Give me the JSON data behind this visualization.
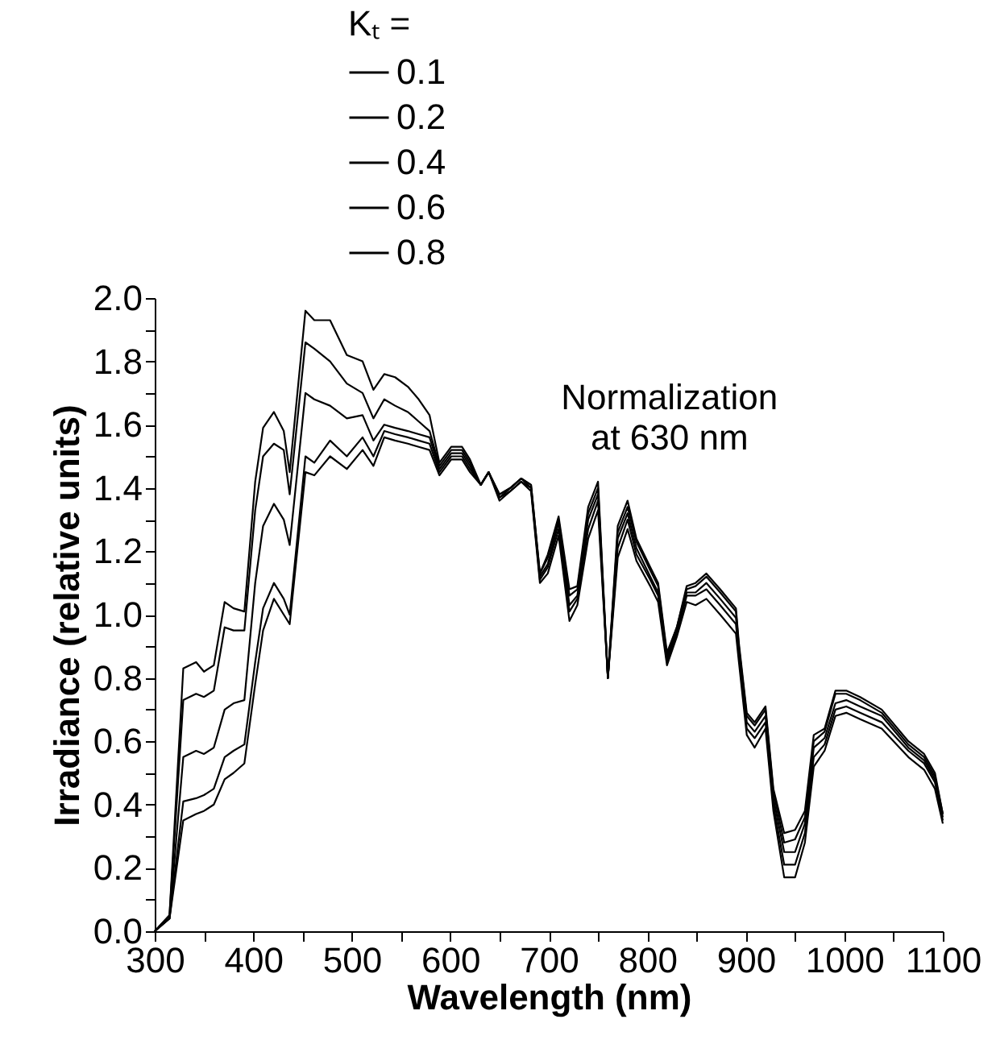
{
  "chart_data": {
    "type": "line",
    "xlabel": "Wavelength (nm)",
    "ylabel": "Irradiance (relative units)",
    "legend_title": "Kₜ =",
    "legend": "top",
    "x": [
      300,
      315,
      329,
      342,
      350,
      360,
      371,
      380,
      391,
      402,
      410,
      421,
      431,
      437,
      453,
      462,
      478,
      495,
      511,
      522,
      533,
      544,
      557,
      568,
      579,
      589,
      601,
      612,
      620,
      631,
      639,
      650,
      661,
      672,
      682,
      691,
      699,
      710,
      721,
      729,
      740,
      750,
      760,
      770,
      780,
      789,
      803,
      811,
      820,
      830,
      840,
      849,
      860,
      874,
      890,
      893,
      901,
      909,
      920,
      928,
      939,
      950,
      960,
      969,
      980,
      991,
      1002,
      1016,
      1038,
      1065,
      1081,
      1092,
      1100
    ],
    "series": [
      {
        "name": "0.1",
        "color": "#000000",
        "values": [
          0,
          0.05,
          0.83,
          0.85,
          0.82,
          0.84,
          1.04,
          1.02,
          1.01,
          1.42,
          1.59,
          1.64,
          1.58,
          1.45,
          1.96,
          1.93,
          1.93,
          1.82,
          1.8,
          1.71,
          1.76,
          1.75,
          1.72,
          1.68,
          1.63,
          1.48,
          1.53,
          1.53,
          1.49,
          1.41,
          1.45,
          1.36,
          1.39,
          1.42,
          1.39,
          1.1,
          1.13,
          1.25,
          0.98,
          1.03,
          1.24,
          1.33,
          0.8,
          1.18,
          1.27,
          1.17,
          1.09,
          1.04,
          0.84,
          0.93,
          1.04,
          1.03,
          1.05,
          1.0,
          0.94,
          0.85,
          0.62,
          0.58,
          0.64,
          0.38,
          0.17,
          0.17,
          0.28,
          0.52,
          0.57,
          0.68,
          0.69,
          0.67,
          0.64,
          0.55,
          0.51,
          0.45,
          0.34
        ]
      },
      {
        "name": "0.2",
        "color": "#000000",
        "values": [
          0,
          0.05,
          0.73,
          0.75,
          0.74,
          0.76,
          0.96,
          0.95,
          0.95,
          1.33,
          1.5,
          1.54,
          1.52,
          1.38,
          1.86,
          1.84,
          1.8,
          1.73,
          1.7,
          1.62,
          1.68,
          1.66,
          1.64,
          1.61,
          1.58,
          1.47,
          1.52,
          1.52,
          1.48,
          1.41,
          1.45,
          1.37,
          1.39,
          1.42,
          1.4,
          1.11,
          1.15,
          1.27,
          1.01,
          1.05,
          1.27,
          1.36,
          0.8,
          1.21,
          1.3,
          1.19,
          1.11,
          1.06,
          0.85,
          0.94,
          1.06,
          1.06,
          1.08,
          1.03,
          0.97,
          0.87,
          0.64,
          0.61,
          0.66,
          0.4,
          0.21,
          0.21,
          0.31,
          0.55,
          0.59,
          0.7,
          0.71,
          0.69,
          0.66,
          0.57,
          0.53,
          0.47,
          0.35
        ]
      },
      {
        "name": "0.4",
        "color": "#000000",
        "values": [
          0,
          0.04,
          0.55,
          0.57,
          0.56,
          0.58,
          0.7,
          0.72,
          0.73,
          1.1,
          1.28,
          1.35,
          1.3,
          1.22,
          1.7,
          1.68,
          1.66,
          1.62,
          1.63,
          1.55,
          1.6,
          1.59,
          1.58,
          1.57,
          1.56,
          1.46,
          1.51,
          1.51,
          1.47,
          1.41,
          1.45,
          1.37,
          1.4,
          1.43,
          1.4,
          1.12,
          1.16,
          1.29,
          1.03,
          1.06,
          1.3,
          1.38,
          0.8,
          1.24,
          1.32,
          1.21,
          1.12,
          1.07,
          0.86,
          0.95,
          1.07,
          1.07,
          1.1,
          1.05,
          0.99,
          0.89,
          0.66,
          0.63,
          0.68,
          0.42,
          0.25,
          0.25,
          0.34,
          0.58,
          0.61,
          0.72,
          0.73,
          0.71,
          0.68,
          0.58,
          0.54,
          0.48,
          0.36
        ]
      },
      {
        "name": "0.6",
        "color": "#000000",
        "values": [
          0,
          0.04,
          0.41,
          0.42,
          0.43,
          0.45,
          0.55,
          0.57,
          0.59,
          0.85,
          1.02,
          1.1,
          1.05,
          1.0,
          1.5,
          1.48,
          1.55,
          1.5,
          1.56,
          1.5,
          1.58,
          1.57,
          1.56,
          1.55,
          1.54,
          1.45,
          1.5,
          1.5,
          1.46,
          1.41,
          1.45,
          1.38,
          1.4,
          1.43,
          1.41,
          1.13,
          1.18,
          1.3,
          1.06,
          1.08,
          1.32,
          1.4,
          0.8,
          1.26,
          1.34,
          1.23,
          1.14,
          1.09,
          0.87,
          0.96,
          1.08,
          1.09,
          1.12,
          1.07,
          1.01,
          0.9,
          0.68,
          0.65,
          0.7,
          0.44,
          0.28,
          0.29,
          0.36,
          0.6,
          0.63,
          0.75,
          0.75,
          0.73,
          0.69,
          0.59,
          0.55,
          0.49,
          0.37
        ]
      },
      {
        "name": "0.8",
        "color": "#000000",
        "values": [
          0,
          0.04,
          0.35,
          0.37,
          0.38,
          0.4,
          0.48,
          0.5,
          0.53,
          0.78,
          0.95,
          1.05,
          1.0,
          0.97,
          1.45,
          1.44,
          1.5,
          1.46,
          1.52,
          1.47,
          1.56,
          1.55,
          1.54,
          1.53,
          1.52,
          1.44,
          1.49,
          1.49,
          1.45,
          1.41,
          1.45,
          1.38,
          1.4,
          1.43,
          1.41,
          1.13,
          1.19,
          1.31,
          1.08,
          1.09,
          1.34,
          1.42,
          0.8,
          1.28,
          1.36,
          1.24,
          1.15,
          1.1,
          0.88,
          0.96,
          1.09,
          1.1,
          1.13,
          1.08,
          1.02,
          0.91,
          0.69,
          0.66,
          0.71,
          0.45,
          0.31,
          0.32,
          0.38,
          0.62,
          0.64,
          0.76,
          0.76,
          0.74,
          0.7,
          0.6,
          0.56,
          0.5,
          0.37
        ]
      }
    ],
    "xlim": [
      300,
      1100
    ],
    "xticks": [
      300,
      {
        "value": 350,
        "label": null
      },
      400,
      {
        "value": 450,
        "label": null
      },
      500,
      {
        "value": 550,
        "label": null
      },
      600,
      {
        "value": 650,
        "label": null
      },
      700,
      {
        "value": 750,
        "label": null
      },
      800,
      {
        "value": 850,
        "label": null
      },
      900,
      {
        "value": 950,
        "label": null
      },
      1000,
      {
        "value": 1050,
        "label": null
      },
      1100
    ],
    "ylim": [
      0,
      2
    ],
    "yticks": [
      {
        "value": 0,
        "label": "0.0"
      },
      {
        "value": 0.1,
        "label": null
      },
      {
        "value": 0.2,
        "label": "0.2"
      },
      {
        "value": 0.3,
        "label": null
      },
      {
        "value": 0.4,
        "label": "0.4"
      },
      {
        "value": 0.5,
        "label": null
      },
      {
        "value": 0.6,
        "label": "0.6"
      },
      {
        "value": 0.7,
        "label": null
      },
      {
        "value": 0.8,
        "label": "0.8"
      },
      {
        "value": 0.9,
        "label": null
      },
      {
        "value": 1,
        "label": "1.0"
      },
      {
        "value": 1.1,
        "label": null
      },
      {
        "value": 1.2,
        "label": "1.2"
      },
      {
        "value": 1.3,
        "label": null
      },
      {
        "value": 1.4,
        "label": "1.4"
      },
      {
        "value": 1.5,
        "label": null
      },
      {
        "value": 1.6,
        "label": "1.6"
      },
      {
        "value": 1.7,
        "label": null
      },
      {
        "value": 1.8,
        "label": "1.8"
      },
      {
        "value": 1.9,
        "label": null
      },
      {
        "value": 2,
        "label": "2.0"
      }
    ],
    "grid": false,
    "marker": "none",
    "line_style": "solid",
    "annotations": [
      {
        "text": "Normalization\nat 630 nm",
        "x": 672,
        "y": 1.43
      }
    ]
  }
}
